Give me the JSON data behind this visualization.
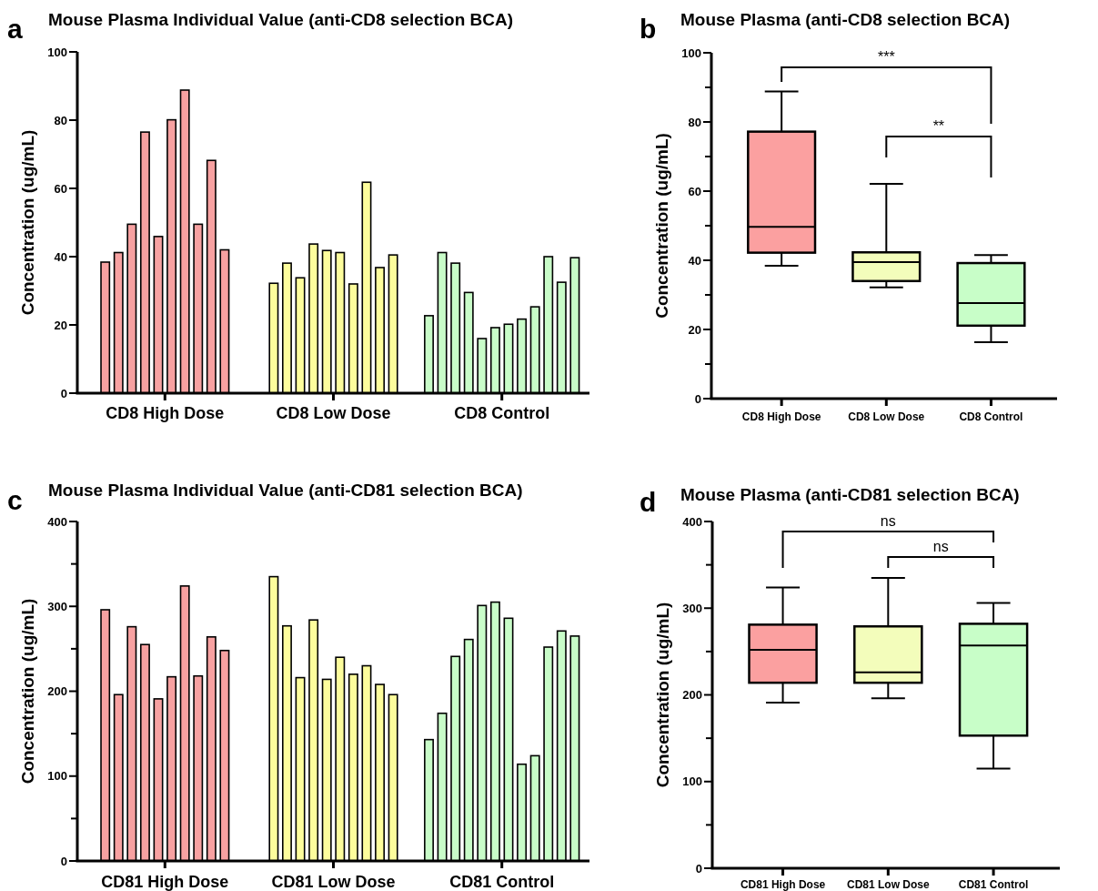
{
  "chart_data": [
    {
      "type": "bar",
      "title": "Mouse Plasma Individual Value (anti-CD8 selection BCA)",
      "ylabel": "Concentration (ug/mL)",
      "annotations": [
        "a"
      ],
      "categories": [
        "CD8 High Dose",
        "CD8 Low Dose",
        "CD8 Control"
      ],
      "ylim": [
        0,
        100
      ],
      "yticks": [
        0,
        20,
        40,
        60,
        80,
        100
      ],
      "series": [
        {
          "colors": [
            "#f7a1a1",
            "#fdfd9c",
            "#c8fcc8"
          ],
          "values": [
            38.4,
            32.2,
            22.7
          ]
        },
        {
          "colors": [
            "#f7a1a1",
            "#fdfd9c",
            "#c8fcc8"
          ],
          "values": [
            41.2,
            38.1,
            41.2
          ]
        },
        {
          "colors": [
            "#f7a1a1",
            "#fdfd9c",
            "#c8fcc8"
          ],
          "values": [
            49.5,
            33.8,
            38.1
          ]
        },
        {
          "colors": [
            "#f7a1a1",
            "#fdfd9c",
            "#c8fcc8"
          ],
          "values": [
            76.5,
            43.7,
            29.5
          ]
        },
        {
          "colors": [
            "#f7a1a1",
            "#fdfd9c",
            "#c8fcc8"
          ],
          "values": [
            45.9,
            41.8,
            16.0
          ]
        },
        {
          "colors": [
            "#f7a1a1",
            "#fdfd9c",
            "#c8fcc8"
          ],
          "values": [
            80.1,
            41.2,
            19.2
          ]
        },
        {
          "colors": [
            "#f7a1a1",
            "#fdfd9c",
            "#c8fcc8"
          ],
          "values": [
            88.8,
            32.0,
            20.2
          ]
        },
        {
          "colors": [
            "#f7a1a1",
            "#fdfd9c",
            "#c8fcc8"
          ],
          "values": [
            49.5,
            61.8,
            21.7
          ]
        },
        {
          "colors": [
            "#f7a1a1",
            "#fdfd9c",
            "#c8fcc8"
          ],
          "values": [
            68.2,
            36.8,
            25.3
          ]
        },
        {
          "colors": [
            "#f7a1a1",
            "#fdfd9c",
            "#c8fcc8"
          ],
          "values": [
            42.0,
            40.5,
            40.0
          ]
        },
        {
          "colors": [
            null,
            null,
            "#c8fcc8"
          ],
          "values": [
            null,
            null,
            32.5
          ]
        },
        {
          "colors": [
            null,
            null,
            "#c8fcc8"
          ],
          "values": [
            null,
            null,
            39.7
          ]
        }
      ]
    },
    {
      "type": "box",
      "title": "Mouse Plasma (anti-CD8 selection BCA)",
      "ylabel": "Concentration (ug/mL)",
      "annotations": [
        "b",
        "***",
        "**"
      ],
      "categories": [
        "CD8 High Dose",
        "CD8 Low Dose",
        "CD8 Control"
      ],
      "colors": [
        "#fba0a0",
        "#f3fdbb",
        "#c8fec8"
      ],
      "ylim": [
        0,
        100
      ],
      "yticks": [
        0,
        {
          "value": 10,
          "label": null
        },
        20,
        {
          "value": 30,
          "label": null
        },
        40,
        {
          "value": 50,
          "label": null
        },
        60,
        {
          "value": 70,
          "label": null
        },
        80,
        {
          "value": 90,
          "label": null
        },
        100
      ],
      "boxes": [
        {
          "low": 38.4,
          "q1": 42.2,
          "median": 49.7,
          "q3": 77.2,
          "high": 88.8
        },
        {
          "low": 32.2,
          "q1": 34.0,
          "median": 39.5,
          "q3": 42.3,
          "high": 62.1
        },
        {
          "low": 16.3,
          "q1": 21.1,
          "median": 27.6,
          "q3": 39.2,
          "high": 41.5
        }
      ]
    },
    {
      "type": "bar",
      "title": "Mouse Plasma Individual Value (anti-CD81 selection BCA)",
      "ylabel": "Concentration (ug/mL)",
      "annotations": [
        "c"
      ],
      "categories": [
        "CD81 High Dose",
        "CD81 Low Dose",
        "CD81 Control"
      ],
      "ylim": [
        0,
        400
      ],
      "yticks": [
        0,
        {
          "value": 50,
          "label": null
        },
        100,
        {
          "value": 150,
          "label": null
        },
        200,
        {
          "value": 250,
          "label": null
        },
        300,
        {
          "value": 350,
          "label": null
        },
        400
      ],
      "series": [
        {
          "colors": [
            "#f7a1a1",
            "#fdfd9c",
            "#c8fcc8"
          ],
          "values": [
            296,
            335,
            143
          ]
        },
        {
          "colors": [
            "#f7a1a1",
            "#fdfd9c",
            "#c8fcc8"
          ],
          "values": [
            196,
            277,
            174
          ]
        },
        {
          "colors": [
            "#f7a1a1",
            "#fdfd9c",
            "#c8fcc8"
          ],
          "values": [
            276,
            216,
            241
          ]
        },
        {
          "colors": [
            "#f7a1a1",
            "#fdfd9c",
            "#c8fcc8"
          ],
          "values": [
            255,
            284,
            261
          ]
        },
        {
          "colors": [
            "#f7a1a1",
            "#fdfd9c",
            "#c8fcc8"
          ],
          "values": [
            191,
            214,
            301
          ]
        },
        {
          "colors": [
            "#f7a1a1",
            "#fdfd9c",
            "#c8fcc8"
          ],
          "values": [
            217,
            240,
            305
          ]
        },
        {
          "colors": [
            "#f7a1a1",
            "#fdfd9c",
            "#c8fcc8"
          ],
          "values": [
            324,
            220,
            286
          ]
        },
        {
          "colors": [
            "#f7a1a1",
            "#fdfd9c",
            "#c8fcc8"
          ],
          "values": [
            218,
            230,
            114
          ]
        },
        {
          "colors": [
            "#f7a1a1",
            "#fdfd9c",
            "#c8fcc8"
          ],
          "values": [
            264,
            208,
            124
          ]
        },
        {
          "colors": [
            "#f7a1a1",
            "#fdfd9c",
            "#c8fcc8"
          ],
          "values": [
            248,
            196,
            252
          ]
        },
        {
          "colors": [
            null,
            null,
            "#c8fcc8"
          ],
          "values": [
            null,
            null,
            271
          ]
        },
        {
          "colors": [
            null,
            null,
            "#c8fcc8"
          ],
          "values": [
            null,
            null,
            265
          ]
        }
      ]
    },
    {
      "type": "box",
      "title": "Mouse Plasma (anti-CD81 selection BCA)",
      "ylabel": "Concentration (ug/mL)",
      "annotations": [
        "d",
        "ns",
        "ns"
      ],
      "categories": [
        "CD81 High Dose",
        "CD81 Low Dose",
        "CD81 Control"
      ],
      "colors": [
        "#fba0a0",
        "#f3fdbb",
        "#c8fec8"
      ],
      "ylim": [
        0,
        400
      ],
      "yticks": [
        0,
        {
          "value": 50,
          "label": null
        },
        100,
        {
          "value": 150,
          "label": null
        },
        200,
        {
          "value": 250,
          "label": null
        },
        300,
        {
          "value": 350,
          "label": null
        },
        400
      ],
      "boxes": [
        {
          "low": 191,
          "q1": 214,
          "median": 252,
          "q3": 281,
          "high": 324
        },
        {
          "low": 196,
          "q1": 214,
          "median": 226,
          "q3": 279,
          "high": 335
        },
        {
          "low": 115,
          "q1": 153,
          "median": 257,
          "q3": 282,
          "high": 306
        }
      ]
    }
  ]
}
